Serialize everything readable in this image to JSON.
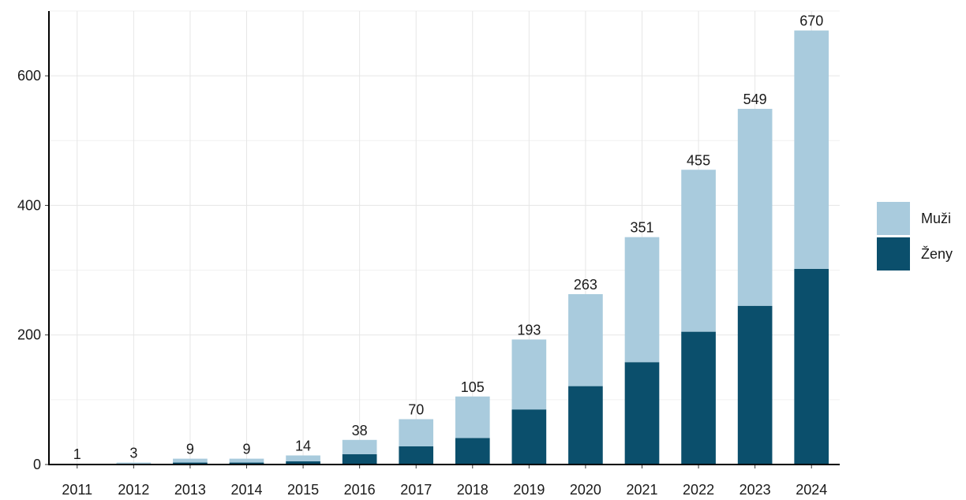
{
  "chart_data": {
    "type": "bar",
    "stacked": true,
    "categories": [
      "2011",
      "2012",
      "2013",
      "2014",
      "2015",
      "2016",
      "2017",
      "2018",
      "2019",
      "2020",
      "2021",
      "2022",
      "2023",
      "2024"
    ],
    "series": [
      {
        "name": "Ženy",
        "color": "#0b4f6c",
        "values": [
          0,
          1,
          3,
          3,
          5,
          16,
          28,
          41,
          85,
          121,
          158,
          205,
          245,
          302
        ]
      },
      {
        "name": "Muži",
        "color": "#a9cbdd",
        "values": [
          1,
          2,
          6,
          6,
          9,
          22,
          42,
          64,
          108,
          142,
          193,
          250,
          304,
          368
        ]
      }
    ],
    "totals": [
      1,
      3,
      9,
      9,
      14,
      38,
      70,
      105,
      193,
      263,
      351,
      455,
      549,
      670
    ],
    "total_labels": [
      "1",
      "3",
      "9",
      "9",
      "14",
      "38",
      "70",
      "105",
      "193",
      "263",
      "351",
      "455",
      "549",
      "670"
    ],
    "yticks": [
      0,
      200,
      400,
      600
    ],
    "ytick_labels": [
      "0",
      "200",
      "400",
      "600"
    ],
    "ylim": [
      0,
      700
    ],
    "grid": true,
    "legend": {
      "placement": "right",
      "entries": [
        {
          "label": "Muži",
          "color": "#a9cbdd"
        },
        {
          "label": "Ženy",
          "color": "#0b4f6c"
        }
      ]
    }
  }
}
